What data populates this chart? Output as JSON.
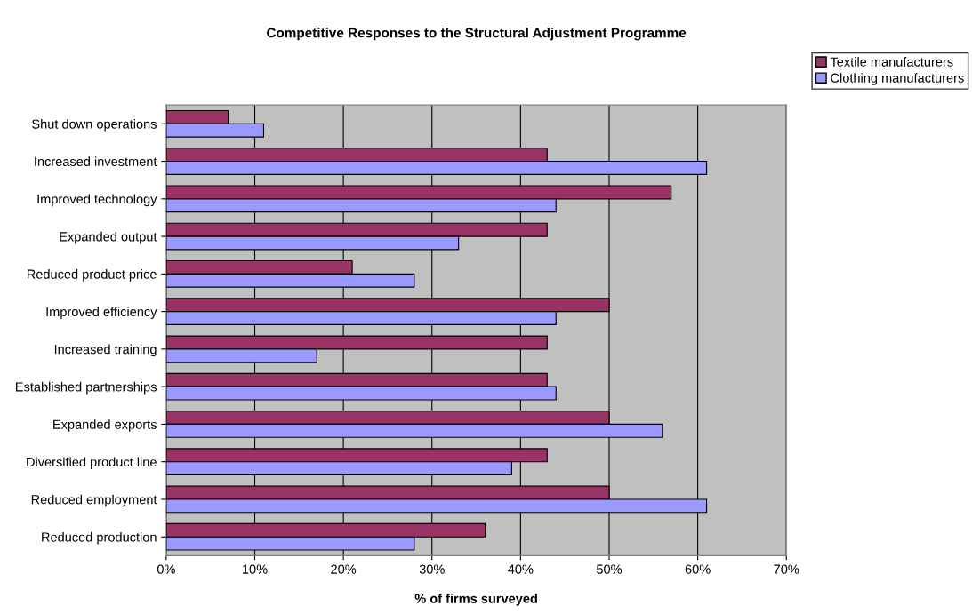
{
  "chart_data": {
    "type": "bar",
    "orientation": "horizontal",
    "title": "Competitive Responses to the Structural Adjustment Programme",
    "xlabel": "% of firms surveyed",
    "categories": [
      "Shut down operations",
      "Increased investment",
      "Improved technology",
      "Expanded output",
      "Reduced product price",
      "Improved efficiency",
      "Increased training",
      "Established partnerships",
      "Expanded exports",
      "Diversified product line",
      "Reduced employment",
      "Reduced production"
    ],
    "series": [
      {
        "name": "Textile manufacturers",
        "color": "#993366",
        "values": [
          7,
          43,
          57,
          43,
          21,
          50,
          43,
          43,
          50,
          43,
          50,
          36
        ]
      },
      {
        "name": "Clothing manufacturers",
        "color": "#9999ff",
        "values": [
          11,
          61,
          44,
          33,
          28,
          44,
          17,
          44,
          56,
          39,
          61,
          28
        ]
      }
    ],
    "xlim": [
      0,
      70
    ],
    "xticks": [
      {
        "value": 0,
        "label": "0%"
      },
      {
        "value": 10,
        "label": "10%"
      },
      {
        "value": 20,
        "label": "20%"
      },
      {
        "value": 30,
        "label": "30%"
      },
      {
        "value": 40,
        "label": "40%"
      },
      {
        "value": 50,
        "label": "50%"
      },
      {
        "value": 60,
        "label": "60%"
      },
      {
        "value": 70,
        "label": "70%"
      }
    ],
    "grid": "x",
    "legend": "top right"
  }
}
